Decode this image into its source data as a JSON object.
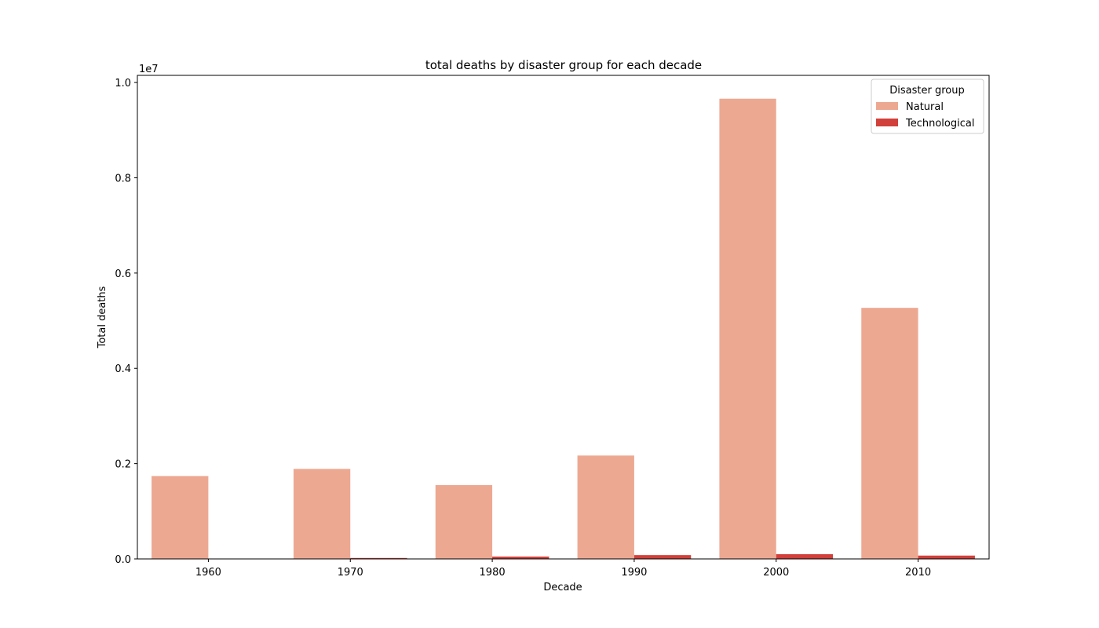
{
  "chart_data": {
    "type": "bar",
    "title": "total deaths by disaster group for each decade",
    "xlabel": "Decade",
    "ylabel": "Total deaths",
    "y_offset_label": "1e7",
    "categories": [
      "1960",
      "1970",
      "1980",
      "1990",
      "2000",
      "2010"
    ],
    "series": [
      {
        "name": "Natural",
        "color": "#eda892",
        "values": [
          1740000,
          1890000,
          1550000,
          2170000,
          9660000,
          5270000
        ]
      },
      {
        "name": "Technological",
        "color": "#d1403a",
        "values": [
          0,
          20000,
          50000,
          80000,
          100000,
          70000
        ]
      }
    ],
    "ylim": [
      0,
      10150000
    ],
    "yticks": [
      {
        "value": 0,
        "label": "0.0"
      },
      {
        "value": 2000000,
        "label": "0.2"
      },
      {
        "value": 4000000,
        "label": "0.4"
      },
      {
        "value": 6000000,
        "label": "0.6"
      },
      {
        "value": 8000000,
        "label": "0.8"
      },
      {
        "value": 10000000,
        "label": "1.0"
      }
    ],
    "grid": false,
    "legend": {
      "title": "Disaster group",
      "position": "top-right"
    }
  }
}
